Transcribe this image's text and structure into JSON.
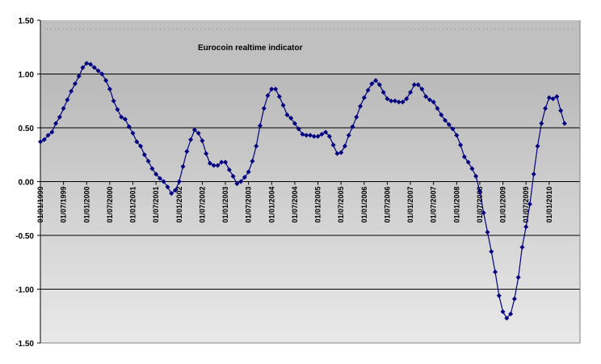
{
  "chart_data": {
    "type": "line",
    "title": "Eurocoin realtime indicator",
    "xlabel": "",
    "ylabel": "",
    "ylim": [
      -1.5,
      1.5
    ],
    "yticks": [
      "1.50",
      "1.00",
      "0.50",
      "0.00",
      "-0.50",
      "-1.00",
      "-1.50"
    ],
    "ytick_values": [
      1.5,
      1.0,
      0.5,
      0.0,
      -0.5,
      -1.0,
      -1.5
    ],
    "xtick_labels": [
      "01/01/1999",
      "01/07/1999",
      "01/01/2000",
      "01/07/2000",
      "01/01/2001",
      "01/07/2001",
      "01/01/2002",
      "01/07/2002",
      "01/01/2003",
      "01/07/2003",
      "01/01/2004",
      "01/07/2004",
      "01/01/2005",
      "01/07/2005",
      "01/01/2006",
      "01/07/2006",
      "01/01/2007",
      "01/07/2007",
      "01/01/2008",
      "01/07/2008",
      "01/01/2009",
      "01/07/2009",
      "01/01/2010"
    ],
    "grid": true,
    "legend": "none",
    "line_color": "#000080",
    "series": [
      {
        "name": "Eurocoin",
        "frequency": "monthly",
        "start": "01/01/1999",
        "values": [
          0.37,
          0.39,
          0.43,
          0.46,
          0.54,
          0.6,
          0.68,
          0.76,
          0.84,
          0.91,
          0.98,
          1.06,
          1.1,
          1.09,
          1.06,
          1.03,
          1.0,
          0.94,
          0.86,
          0.75,
          0.67,
          0.6,
          0.58,
          0.51,
          0.45,
          0.37,
          0.33,
          0.25,
          0.19,
          0.12,
          0.07,
          0.03,
          0.0,
          -0.05,
          -0.11,
          -0.08,
          0.0,
          0.14,
          0.28,
          0.39,
          0.48,
          0.45,
          0.38,
          0.26,
          0.17,
          0.15,
          0.15,
          0.18,
          0.18,
          0.11,
          0.05,
          -0.02,
          0.0,
          0.04,
          0.09,
          0.19,
          0.33,
          0.52,
          0.68,
          0.8,
          0.86,
          0.86,
          0.79,
          0.71,
          0.62,
          0.59,
          0.54,
          0.49,
          0.44,
          0.43,
          0.43,
          0.42,
          0.42,
          0.44,
          0.46,
          0.42,
          0.34,
          0.26,
          0.27,
          0.33,
          0.43,
          0.51,
          0.6,
          0.7,
          0.78,
          0.85,
          0.91,
          0.94,
          0.9,
          0.83,
          0.77,
          0.75,
          0.75,
          0.74,
          0.74,
          0.77,
          0.83,
          0.9,
          0.9,
          0.86,
          0.79,
          0.76,
          0.74,
          0.68,
          0.62,
          0.57,
          0.53,
          0.49,
          0.43,
          0.34,
          0.23,
          0.18,
          0.12,
          0.05,
          -0.09,
          -0.29,
          -0.47,
          -0.65,
          -0.84,
          -1.06,
          -1.21,
          -1.27,
          -1.23,
          -1.09,
          -0.89,
          -0.61,
          -0.42,
          -0.21,
          0.07,
          0.33,
          0.54,
          0.68,
          0.78,
          0.77,
          0.79,
          0.66,
          0.54
        ]
      }
    ]
  }
}
